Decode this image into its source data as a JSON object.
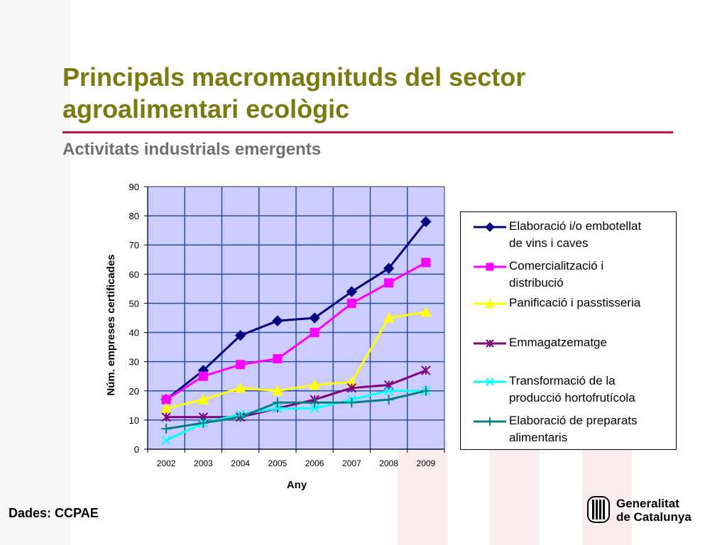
{
  "slide": {
    "title_line1": "Principals macromagnituds del sector",
    "title_line2": "agroalimentari ecològic",
    "subtitle": "Activitats industrials emergents",
    "source": "Dades: CCPAE",
    "logo_line1": "Generalitat",
    "logo_line2": "de Catalunya"
  },
  "colors": {
    "title": "#7a7a10",
    "rule": "#c0163c",
    "plot_bg": "#ccccff",
    "grid": "#2a4ea0"
  },
  "chart_data": {
    "type": "line",
    "title": "",
    "xlabel": "Any",
    "ylabel": "Núm. empreses certificades",
    "categories": [
      "2002",
      "2003",
      "2004",
      "2005",
      "2006",
      "2007",
      "2008",
      "2009"
    ],
    "ylim": [
      0,
      90
    ],
    "yticks": [
      0,
      10,
      20,
      30,
      40,
      50,
      60,
      70,
      80,
      90
    ],
    "grid": true,
    "legend_position": "right",
    "series": [
      {
        "name": "Elaboració i/o embotellat de vins i caves",
        "label_lines": [
          "Elaboració i/o embotellat",
          "de vins i caves"
        ],
        "color": "#000080",
        "marker": "diamond",
        "values": [
          17,
          27,
          39,
          44,
          45,
          54,
          62,
          78
        ]
      },
      {
        "name": "Comercialització i distribució",
        "label_lines": [
          "Comercialització i",
          "distribució"
        ],
        "color": "#ff00ff",
        "marker": "square",
        "values": [
          17,
          25,
          29,
          31,
          40,
          50,
          57,
          64
        ]
      },
      {
        "name": "Panificació i passtisseria",
        "label_lines": [
          "Panificació i passtisseria"
        ],
        "color": "#ffff00",
        "marker": "triangle",
        "values": [
          14,
          17,
          21,
          20,
          22,
          23,
          45,
          47
        ]
      },
      {
        "name": "Emmagatzematge",
        "label_lines": [
          "Emmagatzematge"
        ],
        "color": "#800080",
        "marker": "asterisk",
        "values": [
          11,
          11,
          11,
          14,
          17,
          21,
          22,
          27
        ]
      },
      {
        "name": "Transformació de la producció hortofrutícola",
        "label_lines": [
          "Transformació de la",
          "producció hortofrutícola"
        ],
        "color": "#00ffff",
        "marker": "x",
        "values": [
          3,
          9,
          12,
          14,
          14,
          17,
          20,
          20
        ]
      },
      {
        "name": "Elaboració de preparats alimentaris",
        "label_lines": [
          "Elaboració de preparats",
          "alimentaris"
        ],
        "color": "#008080",
        "marker": "plus",
        "values": [
          7,
          9,
          11,
          16,
          16,
          16,
          17,
          20
        ]
      }
    ]
  }
}
